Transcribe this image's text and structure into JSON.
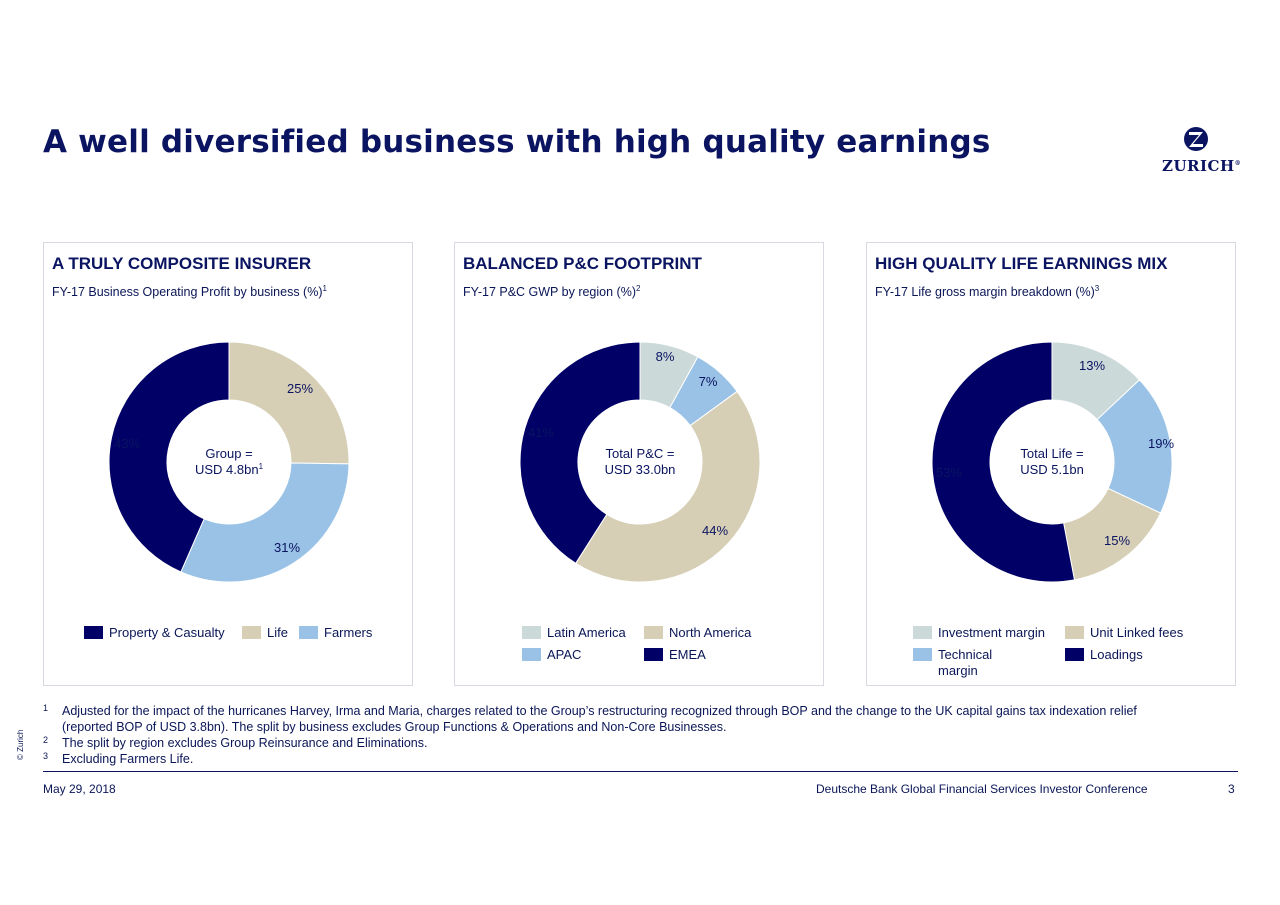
{
  "title": "A well diversified business with high quality earnings",
  "brand": {
    "name": "ZURICH",
    "reg": "®",
    "color": "#0a1460"
  },
  "colors": {
    "navy": "#000066",
    "beige": "#d6cfb6",
    "lightblue": "#99c2e6",
    "lightgrey": "#ccd9d9"
  },
  "chart_data": [
    {
      "type": "pie",
      "title": "A TRULY COMPOSITE INSURER",
      "subtitle": "FY-17 Business Operating Profit by business (%)",
      "subtitle_sup": "1",
      "center_label": [
        "Group =",
        "USD 4.8bn"
      ],
      "center_sup": "1",
      "categories": [
        "Life",
        "Farmers",
        "Property & Casualty"
      ],
      "values": [
        25,
        31,
        43
      ],
      "labels": [
        "25%",
        "31%",
        "43%"
      ],
      "slice_colors": [
        "#d6cfb6",
        "#99c2e6",
        "#000066"
      ],
      "legend": [
        {
          "label": "Property & Casualty",
          "color": "#000066"
        },
        {
          "label": "Life",
          "color": "#d6cfb6"
        },
        {
          "label": "Farmers",
          "color": "#99c2e6"
        }
      ]
    },
    {
      "type": "pie",
      "title": "BALANCED P&C FOOTPRINT",
      "subtitle": "FY-17 P&C GWP by region (%)",
      "subtitle_sup": "2",
      "center_label": [
        "Total P&C =",
        "USD 33.0bn"
      ],
      "center_sup": "",
      "categories": [
        "Latin America",
        "APAC",
        "North America",
        "EMEA"
      ],
      "values": [
        8,
        7,
        44,
        41
      ],
      "labels": [
        "8%",
        "7%",
        "44%",
        "41%"
      ],
      "slice_colors": [
        "#ccd9d9",
        "#99c2e6",
        "#d6cfb6",
        "#000066"
      ],
      "legend": [
        {
          "label": "Latin America",
          "color": "#ccd9d9"
        },
        {
          "label": "North America",
          "color": "#d6cfb6"
        },
        {
          "label": "APAC",
          "color": "#99c2e6"
        },
        {
          "label": "EMEA",
          "color": "#000066"
        }
      ]
    },
    {
      "type": "pie",
      "title": "HIGH QUALITY LIFE EARNINGS MIX",
      "subtitle": "FY-17 Life gross margin breakdown (%)",
      "subtitle_sup": "3",
      "center_label": [
        "Total Life =",
        "USD 5.1bn"
      ],
      "center_sup": "",
      "categories": [
        "Investment margin",
        "Technical margin",
        "Unit Linked fees",
        "Loadings"
      ],
      "values": [
        13,
        19,
        15,
        53
      ],
      "labels": [
        "13%",
        "19%",
        "15%",
        "53%"
      ],
      "slice_colors": [
        "#ccd9d9",
        "#99c2e6",
        "#d6cfb6",
        "#000066"
      ],
      "legend": [
        {
          "label": "Investment margin",
          "color": "#ccd9d9"
        },
        {
          "label": "Unit Linked fees",
          "color": "#d6cfb6"
        },
        {
          "label": "Technical margin",
          "color": "#99c2e6"
        },
        {
          "label": "Loadings",
          "color": "#000066"
        }
      ]
    }
  ],
  "footnotes": [
    {
      "n": "1",
      "text": "Adjusted for the impact of the hurricanes Harvey, Irma and Maria, charges related to the Group’s restructuring recognized through BOP and the change to the UK capital gains tax indexation relief (reported BOP of USD 3.8bn). The split by business excludes Group Functions & Operations and Non-Core Businesses."
    },
    {
      "n": "2",
      "text": "The split by region excludes Group Reinsurance and Eliminations."
    },
    {
      "n": "3",
      "text": "Excluding Farmers Life."
    }
  ],
  "footer": {
    "date": "May 29, 2018",
    "conference": "Deutsche Bank Global Financial Services Investor Conference",
    "page": "3",
    "copyright": "© Zurich"
  }
}
